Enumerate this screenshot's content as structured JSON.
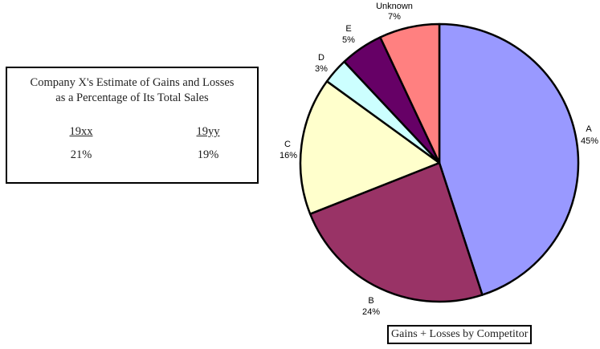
{
  "info_box": {
    "title_line1": "Company X's Estimate of Gains and Losses",
    "title_line2": "as a Percentage of Its Total Sales",
    "columns": [
      {
        "header": "19xx",
        "value": "21%"
      },
      {
        "header": "19yy",
        "value": "19%"
      }
    ]
  },
  "caption": "Gains + Losses by Competitor",
  "chart_data": {
    "type": "pie",
    "title": "Gains + Losses by Competitor",
    "categories": [
      "A",
      "B",
      "C",
      "D",
      "E",
      "Unknown"
    ],
    "values": [
      45,
      24,
      16,
      3,
      5,
      7
    ],
    "labels": [
      {
        "name": "A",
        "pct": "45%"
      },
      {
        "name": "B",
        "pct": "24%"
      },
      {
        "name": "C",
        "pct": "16%"
      },
      {
        "name": "D",
        "pct": "3%"
      },
      {
        "name": "E",
        "pct": "5%"
      },
      {
        "name": "Unknown",
        "pct": "7%"
      }
    ],
    "colors": [
      "#9999ff",
      "#993366",
      "#ffffcc",
      "#ccffff",
      "#660066",
      "#ff8080"
    ],
    "start_angle": "12 o'clock",
    "direction": "clockwise",
    "legend": "none (data labels)",
    "side_table": {
      "title": "Company X's Estimate of Gains and Losses as a Percentage of Its Total Sales",
      "19xx": "21%",
      "19yy": "19%"
    }
  }
}
